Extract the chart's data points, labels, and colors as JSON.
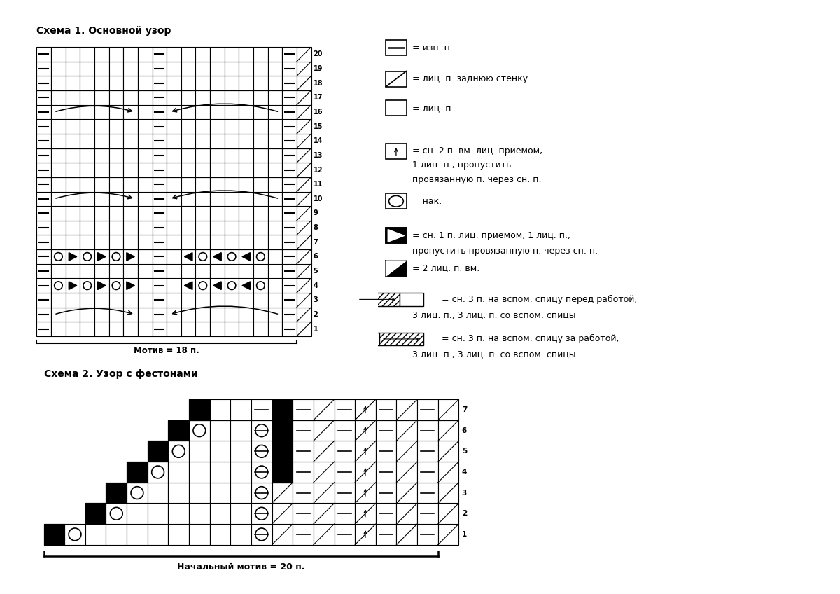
{
  "title1": "Схема 1. Основной узор",
  "title2": "Схема 2. Узор с фестонами",
  "motif1_label": "Мотив = 18 п.",
  "motif2_label": "Начальный мотив = 20 п.",
  "bg_color": "#ffffff"
}
